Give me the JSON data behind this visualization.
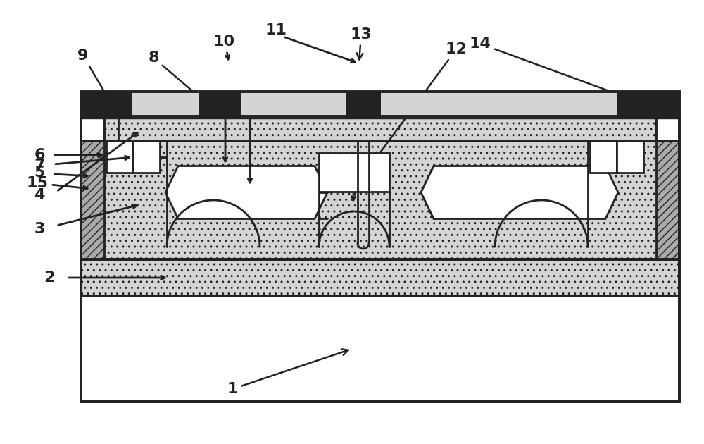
{
  "fig_w": 10.0,
  "fig_h": 6.3,
  "dpi": 100,
  "bg": "#ffffff",
  "black": "#222222",
  "dot_fc": "#d4d4d4",
  "hatch_fc": "#aaaaaa",
  "white": "#ffffff",
  "lw_main": 2.8,
  "lw_med": 2.0,
  "lw_thin": 1.5,
  "label_fs": 16
}
